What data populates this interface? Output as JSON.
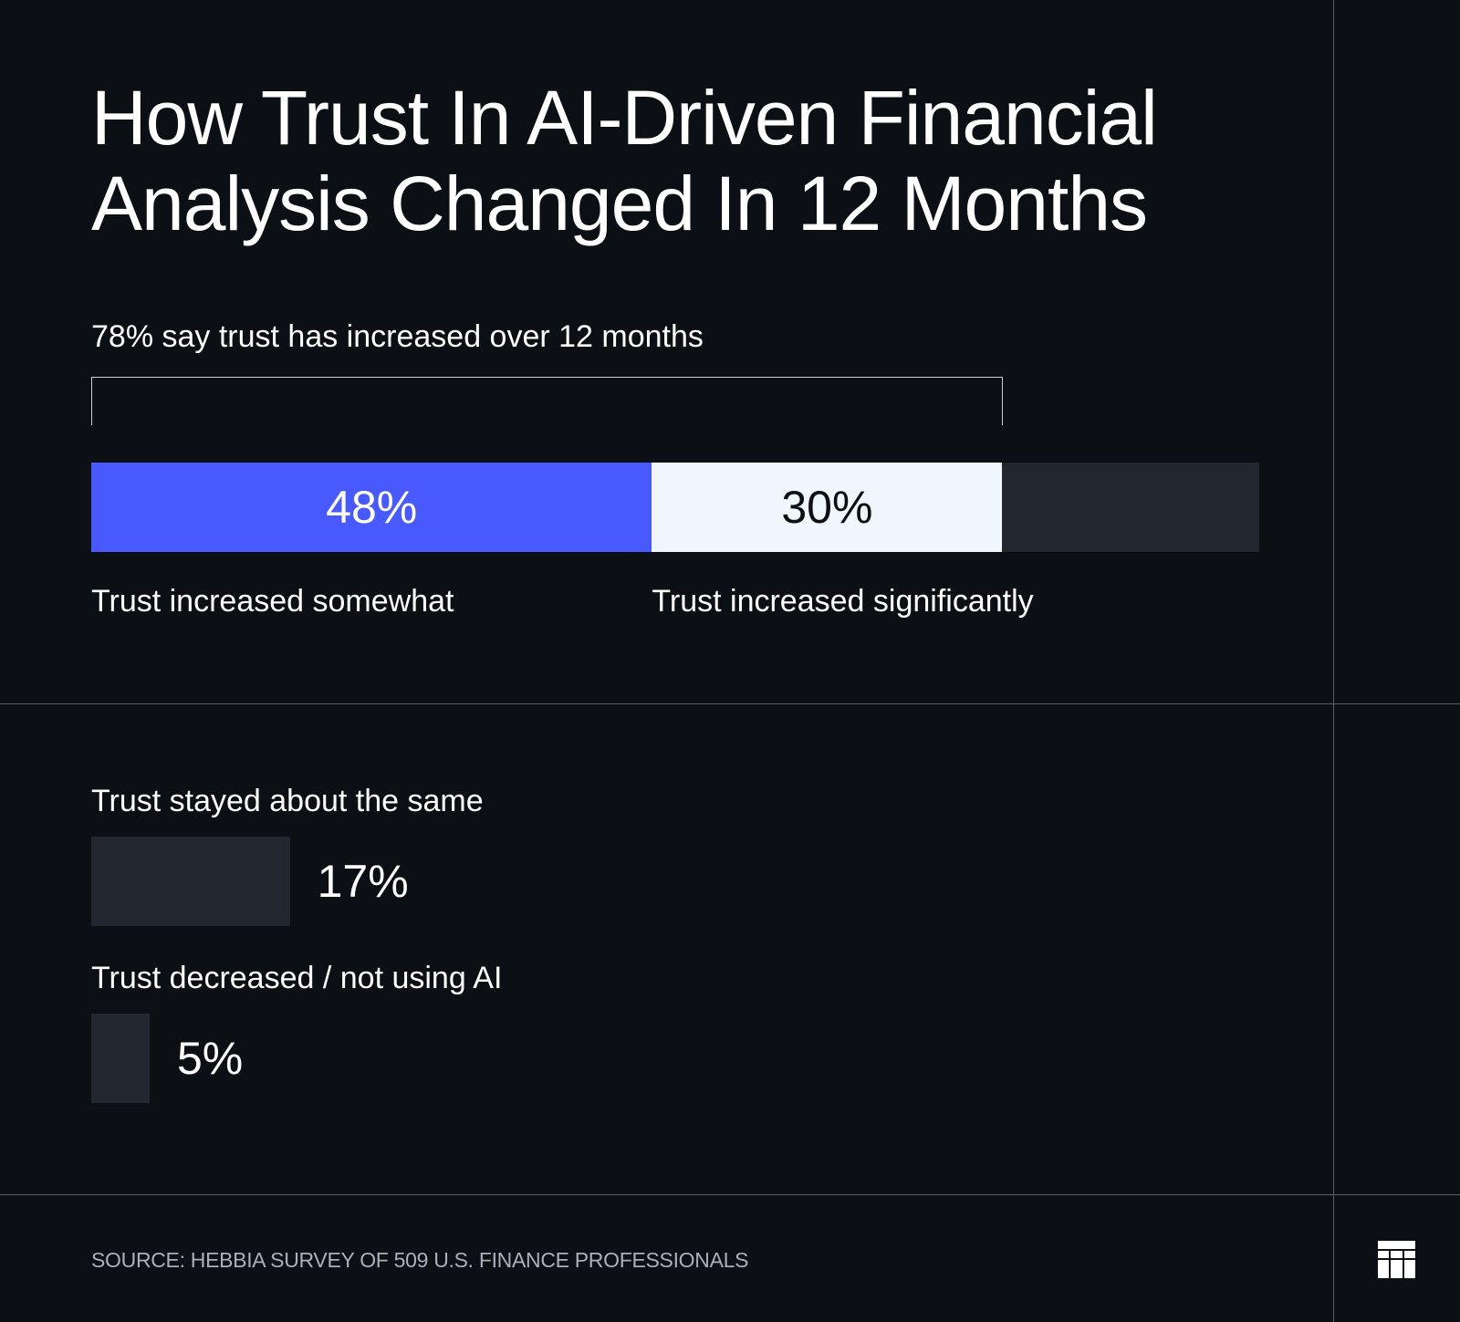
{
  "chart_data": {
    "type": "bar",
    "title": "How Trust In AI-Driven Financial Analysis Changed In 12 Months",
    "subtitle": "78% say trust has increased over 12 months",
    "scale_max": 100,
    "stacked": {
      "segments": [
        {
          "name": "Trust increased somewhat",
          "value": 48,
          "label": "48%",
          "color": "#4759ff",
          "text_color": "#ffffff"
        },
        {
          "name": "Trust increased significantly",
          "value": 30,
          "label": "30%",
          "color": "#eff6fd",
          "text_color": "#0c0f14"
        }
      ],
      "track_color": "#22262e"
    },
    "categories": [
      "Trust stayed about the same",
      "Trust decreased / not using AI"
    ],
    "values": [
      17,
      5
    ],
    "value_labels": [
      "17%",
      "5%"
    ],
    "bar_color": "#22262e",
    "source": "SOURCE: HEBBIA SURVEY OF 509 U.S. FINANCE PROFESSIONALS"
  },
  "colors": {
    "background": "#0c0f14",
    "text": "#ffffff",
    "divider": "#5a5f68"
  },
  "logo": {
    "icon": "hebbia-grid-logo-icon"
  }
}
